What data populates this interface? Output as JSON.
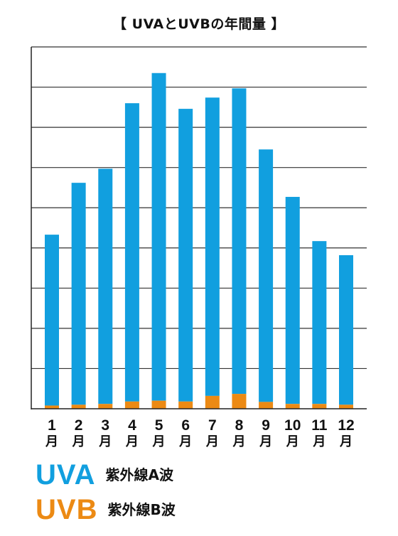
{
  "chart_data": {
    "type": "bar",
    "stacked": true,
    "title": "【 UVAとUVBの年間量 】",
    "categories": [
      "1",
      "2",
      "3",
      "4",
      "5",
      "6",
      "7",
      "8",
      "9",
      "10",
      "11",
      "12"
    ],
    "category_suffix": "月",
    "series": [
      {
        "name": "UVB",
        "values": [
          0.08,
          0.1,
          0.12,
          0.18,
          0.2,
          0.18,
          0.32,
          0.37,
          0.17,
          0.12,
          0.12,
          0.1
        ],
        "color": "#ec8a14"
      },
      {
        "name": "UVA",
        "values": [
          4.25,
          5.52,
          5.85,
          7.42,
          8.15,
          7.28,
          7.42,
          7.6,
          6.28,
          5.15,
          4.05,
          3.72
        ],
        "color": "#119fdf"
      }
    ],
    "ylim": [
      0,
      9
    ],
    "grid": true,
    "y_tick_labels": false,
    "legend": {
      "placement": "bottom-left",
      "items": [
        {
          "code": "UVA",
          "label": "紫外線A波",
          "color": "#119fdf"
        },
        {
          "code": "UVB",
          "label": "紫外線B波",
          "color": "#ec8a14"
        }
      ]
    }
  }
}
